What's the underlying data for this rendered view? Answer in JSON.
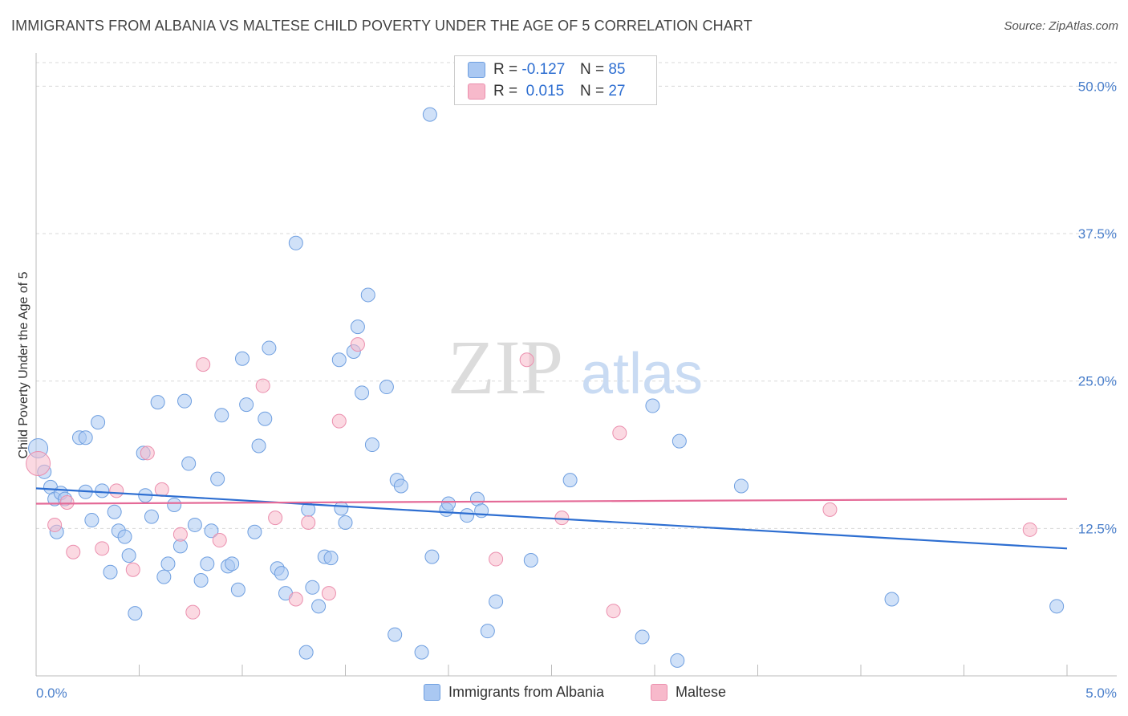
{
  "title": "IMMIGRANTS FROM ALBANIA VS MALTESE CHILD POVERTY UNDER THE AGE OF 5 CORRELATION CHART",
  "source": "Source: ZipAtlas.com",
  "watermark": {
    "zip": "ZIP",
    "atlas": "atlas"
  },
  "legend_top": [
    {
      "r_label": "R =",
      "r_value": "-0.127",
      "n_label": "N =",
      "n_value": "85",
      "color": "#aac8f2"
    },
    {
      "r_label": "R =",
      "r_value": " 0.015",
      "n_label": "N =",
      "n_value": "27",
      "color": "#f7b9cb"
    }
  ],
  "legend_bottom": [
    {
      "label": "Immigrants from Albania",
      "color": "#aac8f2"
    },
    {
      "label": "Maltese",
      "color": "#f7b9cb"
    }
  ],
  "chart_data": {
    "type": "scatter",
    "title": "IMMIGRANTS FROM ALBANIA VS MALTESE CHILD POVERTY UNDER THE AGE OF 5 CORRELATION CHART",
    "xlabel": "",
    "ylabel": "Child Poverty Under the Age of 5",
    "xlim": [
      0,
      5
    ],
    "ylim": [
      0,
      52
    ],
    "x_tick_labels": [
      "0.0%",
      "5.0%"
    ],
    "y_ticks": [
      12.5,
      25.0,
      37.5,
      50.0
    ],
    "y_tick_labels": [
      "12.5%",
      "25.0%",
      "37.5%",
      "50.0%"
    ],
    "grid": true,
    "legend_placement": "top-center",
    "series": [
      {
        "name": "Immigrants from Albania",
        "color": "#aac8f2",
        "stroke": "#6f9fe0",
        "trend": {
          "x": [
            0,
            5
          ],
          "y": [
            15.9,
            10.8
          ],
          "color": "#2d6ed1"
        },
        "points": [
          [
            0.01,
            19.3
          ],
          [
            0.04,
            17.3
          ],
          [
            0.07,
            16.0
          ],
          [
            0.09,
            15.0
          ],
          [
            0.12,
            15.5
          ],
          [
            0.14,
            15.0
          ],
          [
            0.1,
            12.2
          ],
          [
            0.21,
            20.2
          ],
          [
            0.24,
            20.2
          ],
          [
            0.3,
            21.5
          ],
          [
            0.24,
            15.6
          ],
          [
            0.32,
            15.7
          ],
          [
            0.27,
            13.2
          ],
          [
            0.38,
            13.9
          ],
          [
            0.4,
            12.3
          ],
          [
            0.43,
            11.8
          ],
          [
            0.45,
            10.2
          ],
          [
            0.36,
            8.8
          ],
          [
            0.48,
            5.3
          ],
          [
            0.52,
            18.9
          ],
          [
            0.53,
            15.3
          ],
          [
            0.56,
            13.5
          ],
          [
            0.59,
            23.2
          ],
          [
            0.67,
            14.5
          ],
          [
            0.62,
            8.4
          ],
          [
            0.64,
            9.5
          ],
          [
            0.7,
            11.0
          ],
          [
            0.72,
            23.3
          ],
          [
            0.74,
            18.0
          ],
          [
            0.77,
            12.8
          ],
          [
            0.8,
            8.1
          ],
          [
            0.83,
            9.5
          ],
          [
            0.85,
            12.3
          ],
          [
            0.88,
            16.7
          ],
          [
            0.9,
            22.1
          ],
          [
            0.93,
            9.3
          ],
          [
            0.95,
            9.5
          ],
          [
            0.98,
            7.3
          ],
          [
            1.0,
            26.9
          ],
          [
            1.02,
            23.0
          ],
          [
            1.06,
            12.2
          ],
          [
            1.08,
            19.5
          ],
          [
            1.11,
            21.8
          ],
          [
            1.13,
            27.8
          ],
          [
            1.17,
            9.1
          ],
          [
            1.19,
            8.7
          ],
          [
            1.21,
            7.0
          ],
          [
            1.26,
            36.7
          ],
          [
            1.31,
            2.0
          ],
          [
            1.32,
            14.1
          ],
          [
            1.34,
            7.5
          ],
          [
            1.37,
            5.9
          ],
          [
            1.4,
            10.1
          ],
          [
            1.43,
            10.0
          ],
          [
            1.47,
            26.8
          ],
          [
            1.48,
            14.2
          ],
          [
            1.5,
            13.0
          ],
          [
            1.54,
            27.5
          ],
          [
            1.56,
            29.6
          ],
          [
            1.58,
            24.0
          ],
          [
            1.61,
            32.3
          ],
          [
            1.63,
            19.6
          ],
          [
            1.7,
            24.5
          ],
          [
            1.74,
            3.5
          ],
          [
            1.75,
            16.6
          ],
          [
            1.77,
            16.1
          ],
          [
            1.87,
            2.0
          ],
          [
            1.91,
            47.6
          ],
          [
            1.92,
            10.1
          ],
          [
            1.99,
            14.1
          ],
          [
            2.0,
            14.6
          ],
          [
            2.09,
            13.6
          ],
          [
            2.14,
            15.0
          ],
          [
            2.16,
            14.0
          ],
          [
            2.19,
            3.8
          ],
          [
            2.23,
            6.3
          ],
          [
            2.4,
            9.8
          ],
          [
            2.59,
            16.6
          ],
          [
            2.94,
            3.3
          ],
          [
            2.99,
            22.9
          ],
          [
            3.11,
            1.3
          ],
          [
            3.12,
            19.9
          ],
          [
            3.42,
            16.1
          ],
          [
            4.15,
            6.5
          ],
          [
            4.95,
            5.9
          ]
        ]
      },
      {
        "name": "Maltese",
        "color": "#f7b9cb",
        "stroke": "#eb8fae",
        "trend": {
          "x": [
            0,
            5
          ],
          "y": [
            14.6,
            15.0
          ],
          "color": "#e46a97"
        },
        "points": [
          [
            0.01,
            18.0
          ],
          [
            0.09,
            12.8
          ],
          [
            0.15,
            14.7
          ],
          [
            0.18,
            10.5
          ],
          [
            0.32,
            10.8
          ],
          [
            0.39,
            15.7
          ],
          [
            0.47,
            9.0
          ],
          [
            0.54,
            18.9
          ],
          [
            0.61,
            15.8
          ],
          [
            0.7,
            12.0
          ],
          [
            0.76,
            5.4
          ],
          [
            0.81,
            26.4
          ],
          [
            0.89,
            11.5
          ],
          [
            1.1,
            24.6
          ],
          [
            1.16,
            13.4
          ],
          [
            1.26,
            6.5
          ],
          [
            1.32,
            13.0
          ],
          [
            1.42,
            7.0
          ],
          [
            1.47,
            21.6
          ],
          [
            1.56,
            28.1
          ],
          [
            2.23,
            9.9
          ],
          [
            2.38,
            26.8
          ],
          [
            2.55,
            13.4
          ],
          [
            2.8,
            5.5
          ],
          [
            2.83,
            20.6
          ],
          [
            3.85,
            14.1
          ],
          [
            4.82,
            12.4
          ]
        ]
      }
    ]
  }
}
